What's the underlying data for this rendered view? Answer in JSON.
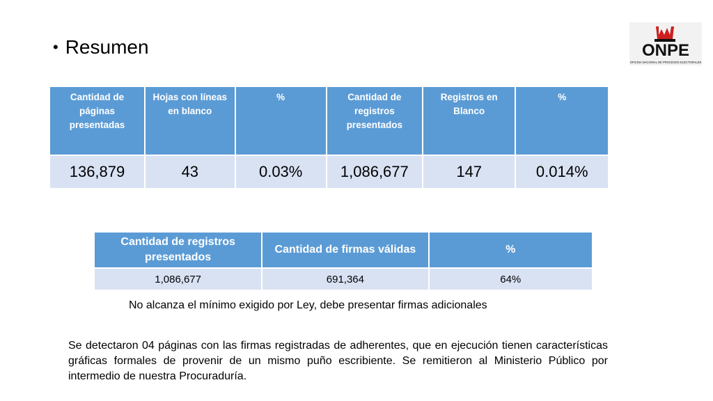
{
  "slide": {
    "title": "Resumen"
  },
  "logo": {
    "text": "ONPE",
    "subtitle": "OFICINA NACIONAL DE PROCESOS ELECTORALES",
    "brand_red": "#cc1f1f"
  },
  "summary_table": {
    "headers": [
      "Cantidad de páginas presentadas",
      "Hojas con líneas en blanco",
      "%",
      "Cantidad de registros presentados",
      "Registros en Blanco",
      "%"
    ],
    "row": [
      "136,879",
      "43",
      "0.03%",
      "1,086,677",
      "147",
      "0.014%"
    ]
  },
  "signatures_table": {
    "headers": [
      "Cantidad de registros presentados",
      "Cantidad de firmas válidas",
      "%"
    ],
    "row": [
      "1,086,677",
      "691,364",
      "64%"
    ]
  },
  "note": "No alcanza el mínimo exigido por Ley, debe presentar firmas adicionales",
  "paragraph": "Se detectaron 04 páginas con las firmas registradas de adherentes, que en ejecución tienen características gráficas formales de provenir de un mismo puño escribiente.  Se remitieron al Ministerio Público por intermedio de nuestra Procuraduría.",
  "colors": {
    "header_blue": "#5b9bd5",
    "cell_light": "#d9e2f3"
  }
}
